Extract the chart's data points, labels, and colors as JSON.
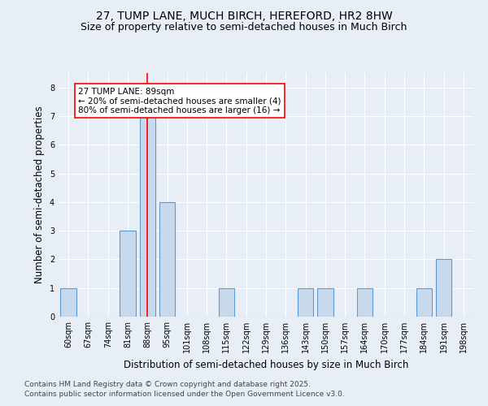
{
  "title1": "27, TUMP LANE, MUCH BIRCH, HEREFORD, HR2 8HW",
  "title2": "Size of property relative to semi-detached houses in Much Birch",
  "xlabel": "Distribution of semi-detached houses by size in Much Birch",
  "ylabel": "Number of semi-detached properties",
  "categories": [
    "60sqm",
    "67sqm",
    "74sqm",
    "81sqm",
    "88sqm",
    "95sqm",
    "101sqm",
    "108sqm",
    "115sqm",
    "122sqm",
    "129sqm",
    "136sqm",
    "143sqm",
    "150sqm",
    "157sqm",
    "164sqm",
    "170sqm",
    "177sqm",
    "184sqm",
    "191sqm",
    "198sqm"
  ],
  "values": [
    1,
    0,
    0,
    3,
    7,
    4,
    0,
    0,
    1,
    0,
    0,
    0,
    1,
    1,
    0,
    1,
    0,
    0,
    1,
    2,
    0
  ],
  "bar_color": "#c9d9ec",
  "bar_edgecolor": "#5b9bd5",
  "vline_index": 4,
  "vline_color": "red",
  "annotation_text": "27 TUMP LANE: 89sqm\n← 20% of semi-detached houses are smaller (4)\n80% of semi-detached houses are larger (16) →",
  "annotation_box_color": "white",
  "annotation_border_color": "red",
  "ylim": [
    0,
    8.5
  ],
  "yticks": [
    0,
    1,
    2,
    3,
    4,
    5,
    6,
    7,
    8
  ],
  "footnote1": "Contains HM Land Registry data © Crown copyright and database right 2025.",
  "footnote2": "Contains public sector information licensed under the Open Government Licence v3.0.",
  "background_color": "#e8eef6",
  "plot_background": "#e8eef6",
  "title1_fontsize": 10,
  "title2_fontsize": 9,
  "tick_fontsize": 7,
  "axis_label_fontsize": 8.5,
  "footnote_fontsize": 6.5
}
